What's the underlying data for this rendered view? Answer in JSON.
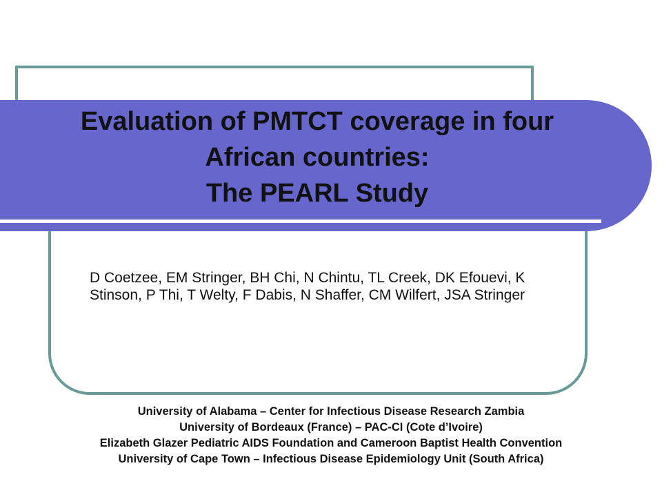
{
  "title": [
    "Evaluation of PMTCT coverage in four",
    "African countries:",
    "The PEARL Study"
  ],
  "authors": "D Coetzee, EM Stringer, BH Chi, N Chintu, TL Creek, DK Efouevi, K Stinson, P Thi, T Welty, F Dabis, N Shaffer, CM Wilfert, JSA Stringer",
  "affiliations": [
    "University of Alabama – Center for Infectious Disease Research Zambia",
    "University of Bordeaux (France) – PAC-CI (Cote d’Ivoire)",
    "Elizabeth Glazer Pediatric AIDS Foundation and Cameroon Baptist Health Convention",
    "University of Cape Town – Infectious Disease Epidemiology Unit (South Africa)"
  ]
}
